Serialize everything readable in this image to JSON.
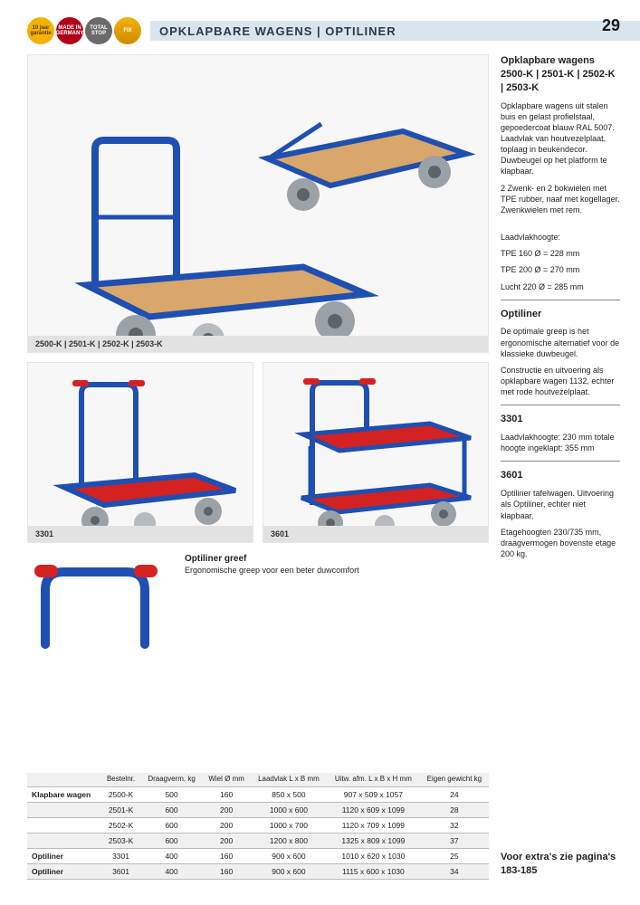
{
  "page": {
    "number": "29",
    "title": "OPKLAPBARE WAGENS | OPTILINER"
  },
  "badges": [
    {
      "label": "10 jaar garantie",
      "bg": "#f2b200"
    },
    {
      "label": "MADE IN GERMANY",
      "bg": "#b00018"
    },
    {
      "label": "TOTAL STOP",
      "bg": "#6a6a6a"
    },
    {
      "label": "FIX",
      "bg": "#f2b200"
    }
  ],
  "figures": {
    "fig1_caption": "2500-K | 2501-K | 2502-K | 2503-K",
    "fig2_caption": "3301",
    "fig3_caption": "3601",
    "greep_title": "Optiliner greef",
    "greep_text": "Ergonomische greep voor een beter duwcomfort"
  },
  "cart_colors": {
    "frame_blue": "#1f4fb0",
    "wood": "#d9a76a",
    "red_deck": "#d42222",
    "grip_red": "#d42222",
    "wheel_tire": "#9aa1a7",
    "wheel_hub": "#5e6368"
  },
  "sidebar": {
    "s1_title": "Opklapbare wagens 2500-K | 2501-K | 2502-K | 2503-K",
    "s1_p1": "Opklapbare wagens uit stalen buis en gelast profielstaal, gepoedercoat blauw RAL 5007. Laadvlak van houtvezelplaat, toplaag in beukendecor. Duwbeugel op het platform te klapbaar.",
    "s1_p2": "2 Zwenk- en 2 bokwielen met TPE rubber, naaf met kogellager. Zwenkwielen met rem.",
    "s1_p3": "Laadvlakhoogte:",
    "s1_p3a": "TPE 160 Ø = 228 mm",
    "s1_p3b": "TPE 200 Ø = 270 mm",
    "s1_p3c": "Lucht 220 Ø = 285 mm",
    "s2_title": "Optiliner",
    "s2_p1": "De optimale greep is het ergonomische alternatief voor de klassieke duwbeugel.",
    "s2_p2": "Constructie en uitvoering als opklapbare wagen 1132, echter met rode houtvezelplaat.",
    "s3_title": "3301",
    "s3_p1": "Laadvlakhoogte: 230 mm totale hoogte ingeklapt: 355 mm",
    "s4_title": "3601",
    "s4_p1": "Optiliner tafelwagen. Uitvoering als Optiliner, echter niet klapbaar.",
    "s4_p2": "Etagehoogten 230/735 mm, draagvermogen bovenste etage 200 kg.",
    "footnote": "Voor extra's zie pagina's 183-185"
  },
  "table": {
    "headers": [
      "",
      "Bestelnr.",
      "Draagverm. kg",
      "Wiel Ø mm",
      "Laadvlak L x B mm",
      "Uitw. afm. L x B x H mm",
      "Eigen gewicht kg"
    ],
    "rows": [
      {
        "label": "Klapbare wagen",
        "cells": [
          "2500-K",
          "500",
          "160",
          "850 x 500",
          "907 x 509 x 1057",
          "24"
        ]
      },
      {
        "label": "",
        "cells": [
          "2501-K",
          "600",
          "200",
          "1000 x 600",
          "1120 x 609 x 1099",
          "28"
        ]
      },
      {
        "label": "",
        "cells": [
          "2502-K",
          "600",
          "200",
          "1000 x 700",
          "1120 x 709 x 1099",
          "32"
        ]
      },
      {
        "label": "",
        "cells": [
          "2503-K",
          "600",
          "200",
          "1200 x 800",
          "1325 x 809 x 1099",
          "37"
        ]
      },
      {
        "label": "Optiliner",
        "cells": [
          "3301",
          "400",
          "160",
          "900 x 600",
          "1010 x 620 x 1030",
          "25"
        ]
      },
      {
        "label": "Optiliner",
        "cells": [
          "3601",
          "400",
          "160",
          "900 x 600",
          "1115 x 600 x 1030",
          "34"
        ]
      }
    ]
  }
}
